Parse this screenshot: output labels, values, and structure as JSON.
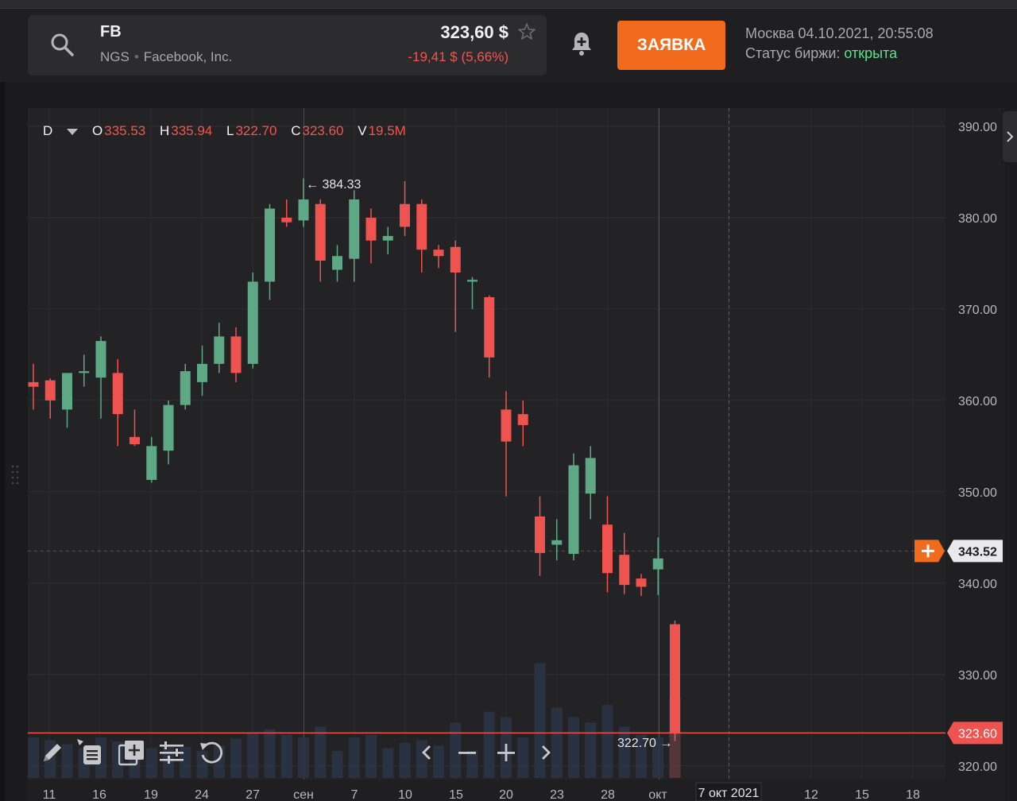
{
  "header": {
    "ticker": "FB",
    "exchange": "NGS",
    "company": "Facebook, Inc.",
    "price": "323,60 $",
    "change": "-19,41 $ (5,66%)",
    "order_button": "ЗАЯВКА",
    "city_time": "Москва 04.10.2021, 20:55:08",
    "status_label": "Статус биржи:",
    "status_value": "открыта"
  },
  "ohlc": {
    "interval": "D",
    "o_label": "O",
    "o": "335.53",
    "h_label": "H",
    "h": "335.94",
    "l_label": "L",
    "l": "322.70",
    "c_label": "C",
    "c": "323.60",
    "v_label": "V",
    "v": "19.5M"
  },
  "colors": {
    "up": "#5fa886",
    "down": "#ef5350",
    "accent": "#f26b1d",
    "status_open": "#5ee08a"
  },
  "chart_data": {
    "type": "candlestick",
    "y_ticks": [
      "390.00",
      "380.00",
      "370.00",
      "360.00",
      "350.00",
      "340.00",
      "330.00",
      "320.00"
    ],
    "ylim": [
      318.5,
      392
    ],
    "x_labels": [
      "11",
      "16",
      "19",
      "24",
      "27",
      "сен",
      "7",
      "10",
      "15",
      "20",
      "23",
      "28",
      "окт",
      "7 окт 2021",
      "12",
      "15",
      "18"
    ],
    "crosshair_date_label": "7 окт 2021",
    "horizontal_line_price": "343.52",
    "last_price_label": "323.60",
    "max_label": "384.33",
    "min_label": "322.70",
    "candles": [
      {
        "o": 362,
        "h": 364,
        "l": 359,
        "c": 361.5,
        "v": 0.3
      },
      {
        "o": 362.2,
        "h": 362.4,
        "l": 358,
        "c": 360,
        "v": 0.28
      },
      {
        "o": 359,
        "h": 363,
        "l": 357,
        "c": 363,
        "v": 0.25
      },
      {
        "o": 363,
        "h": 365,
        "l": 361.5,
        "c": 363.2,
        "v": 0.22
      },
      {
        "o": 362.5,
        "h": 367,
        "l": 358,
        "c": 366.5,
        "v": 0.3
      },
      {
        "o": 363,
        "h": 364.5,
        "l": 355,
        "c": 358.5,
        "v": 0.27
      },
      {
        "o": 356,
        "h": 359,
        "l": 355,
        "c": 355.2,
        "v": 0.2
      },
      {
        "o": 351.3,
        "h": 356,
        "l": 351,
        "c": 355,
        "v": 0.22
      },
      {
        "o": 354.5,
        "h": 360,
        "l": 353,
        "c": 359.5,
        "v": 0.24
      },
      {
        "o": 359.5,
        "h": 364,
        "l": 359,
        "c": 363.2,
        "v": 0.23
      },
      {
        "o": 362,
        "h": 366,
        "l": 360.5,
        "c": 364,
        "v": 0.2
      },
      {
        "o": 364,
        "h": 368.5,
        "l": 363,
        "c": 367,
        "v": 0.24
      },
      {
        "o": 367,
        "h": 368,
        "l": 362,
        "c": 363,
        "v": 0.29
      },
      {
        "o": 364,
        "h": 374,
        "l": 363.5,
        "c": 373,
        "v": 0.33
      },
      {
        "o": 373,
        "h": 381.5,
        "l": 371,
        "c": 381,
        "v": 0.36
      },
      {
        "o": 380,
        "h": 382,
        "l": 379,
        "c": 379.5,
        "v": 0.32
      },
      {
        "o": 379.7,
        "h": 384.3,
        "l": 379,
        "c": 382,
        "v": 0.3
      },
      {
        "o": 381.5,
        "h": 382,
        "l": 373,
        "c": 375.3,
        "v": 0.38
      },
      {
        "o": 374.3,
        "h": 377,
        "l": 373,
        "c": 375.8,
        "v": 0.2
      },
      {
        "o": 375.5,
        "h": 383,
        "l": 373,
        "c": 382,
        "v": 0.3
      },
      {
        "o": 380,
        "h": 381,
        "l": 375,
        "c": 377.5,
        "v": 0.32
      },
      {
        "o": 377.5,
        "h": 379,
        "l": 376,
        "c": 378,
        "v": 0.22
      },
      {
        "o": 381.5,
        "h": 384,
        "l": 378,
        "c": 379,
        "v": 0.26
      },
      {
        "o": 381.5,
        "h": 382,
        "l": 374,
        "c": 376.5,
        "v": 0.28
      },
      {
        "o": 376.5,
        "h": 377,
        "l": 374.5,
        "c": 375.8,
        "v": 0.24
      },
      {
        "o": 376.8,
        "h": 377.5,
        "l": 367.5,
        "c": 374,
        "v": 0.41
      },
      {
        "o": 373,
        "h": 373.5,
        "l": 370,
        "c": 373.2,
        "v": 0.2
      },
      {
        "o": 371.3,
        "h": 371.5,
        "l": 362.5,
        "c": 364.7,
        "v": 0.49
      },
      {
        "o": 359,
        "h": 361,
        "l": 349.5,
        "c": 355.5,
        "v": 0.45
      },
      {
        "o": 358.5,
        "h": 360,
        "l": 355,
        "c": 357.3,
        "v": 0.3
      },
      {
        "o": 347.3,
        "h": 349.5,
        "l": 340.8,
        "c": 343.3,
        "v": 0.85
      },
      {
        "o": 344.2,
        "h": 347,
        "l": 342.5,
        "c": 344.7,
        "v": 0.52
      },
      {
        "o": 343.2,
        "h": 354.2,
        "l": 342.5,
        "c": 352.9,
        "v": 0.45
      },
      {
        "o": 349.8,
        "h": 355,
        "l": 347,
        "c": 353.7,
        "v": 0.41
      },
      {
        "o": 346.4,
        "h": 349.5,
        "l": 339,
        "c": 341.1,
        "v": 0.54
      },
      {
        "o": 343.1,
        "h": 345.5,
        "l": 338.8,
        "c": 339.8,
        "v": 0.38
      },
      {
        "o": 340.5,
        "h": 341,
        "l": 338.6,
        "c": 339.6,
        "v": 0.32
      },
      {
        "o": 341.5,
        "h": 345,
        "l": 338.7,
        "c": 342.7,
        "v": 0.3
      },
      {
        "o": 335.5,
        "h": 335.9,
        "l": 322.7,
        "c": 323.6,
        "v": 0.6
      }
    ]
  }
}
